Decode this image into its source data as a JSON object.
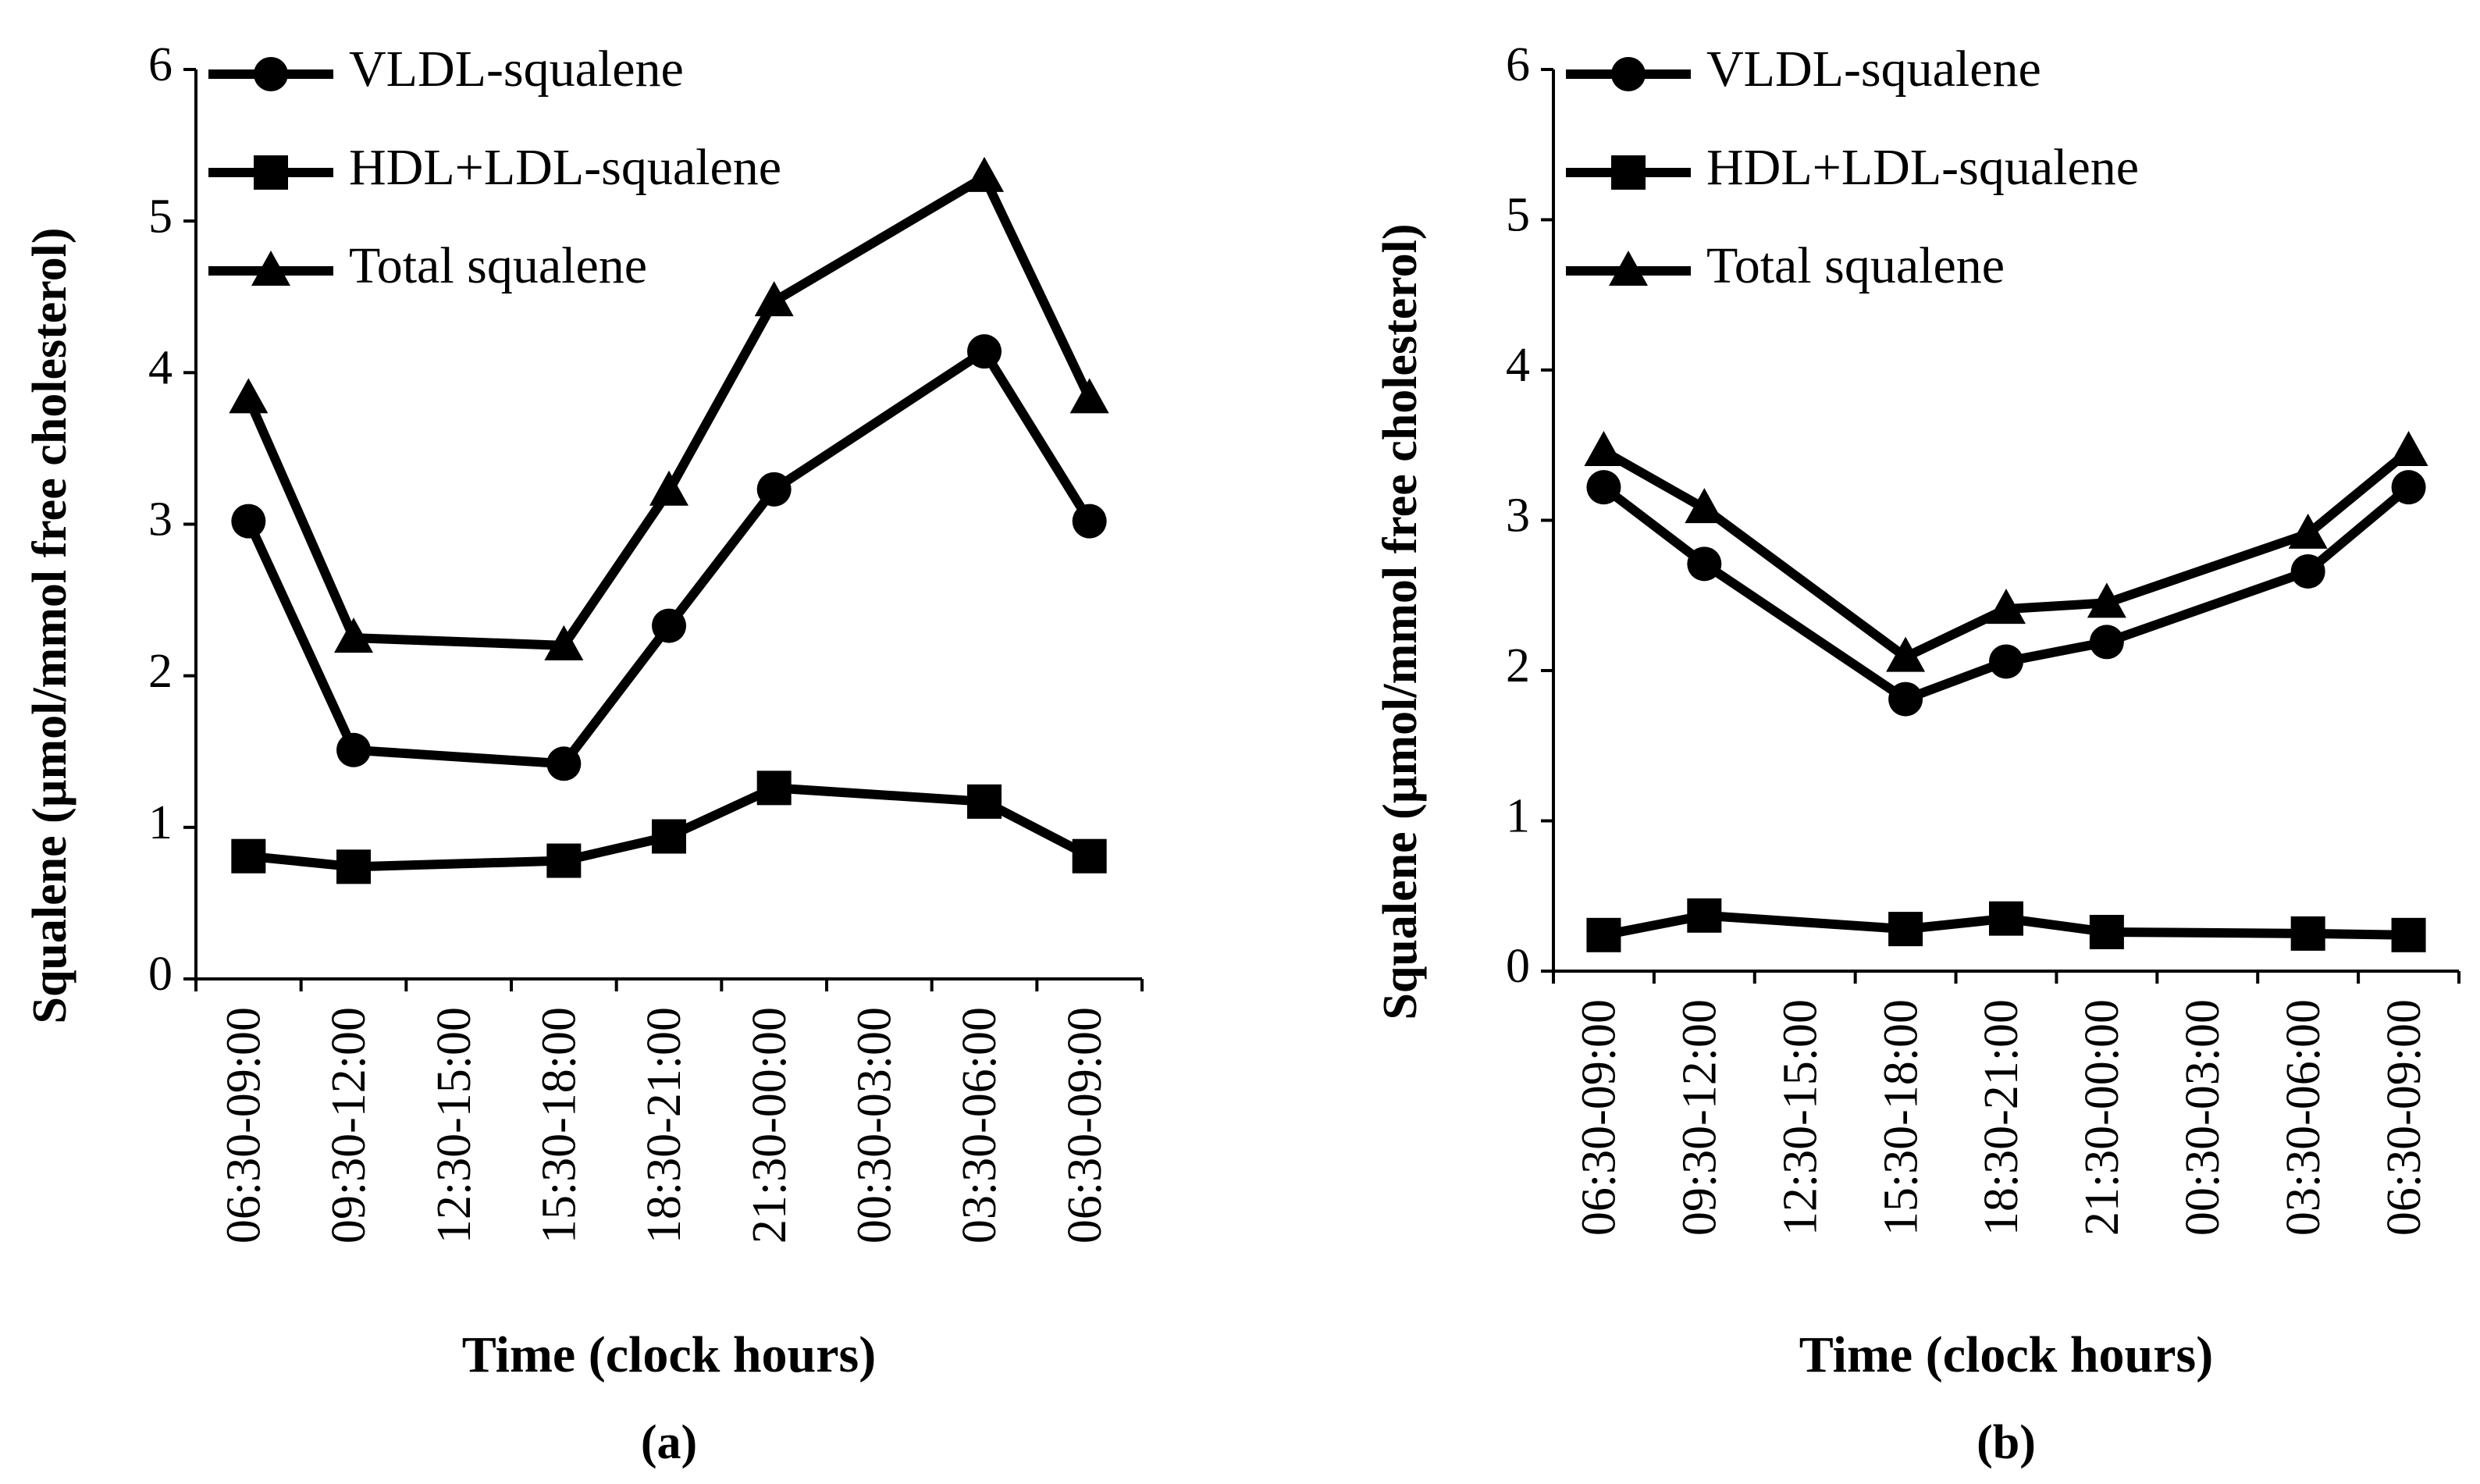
{
  "chart_data": [
    {
      "type": "line",
      "caption": "(a)",
      "x_label": "Time (clock hours)",
      "y_label": "Squalene (µmol/mmol free cholesterol)",
      "categories": [
        "06:30-09:00",
        "09:30-12:00",
        "12:30-15:00",
        "15:30-18:00",
        "18:30-21:00",
        "21:30-00:00",
        "00:30-03:00",
        "03:30-06:00",
        "06:30-09:00"
      ],
      "series": [
        {
          "name": "VLDL-squalene",
          "color": "#000000",
          "marker": "circle",
          "values": [
            3.02,
            1.51,
            null,
            1.42,
            2.33,
            3.23,
            null,
            4.14,
            3.02
          ]
        },
        {
          "name": "HDL+LDL-squalene",
          "color": "#000000",
          "marker": "square",
          "values": [
            0.81,
            0.74,
            null,
            0.78,
            0.94,
            1.26,
            null,
            1.17,
            0.81
          ]
        },
        {
          "name": "Total squalene",
          "color": "#000000",
          "marker": "triangle",
          "values": [
            3.83,
            2.25,
            null,
            2.2,
            3.22,
            4.47,
            null,
            5.29,
            3.83
          ]
        }
      ],
      "ylim": [
        0,
        6
      ],
      "yticks": [
        0,
        1,
        2,
        3,
        4,
        5,
        6
      ],
      "legend": "upper left",
      "grid": false
    },
    {
      "type": "line",
      "caption": "(b)",
      "x_label": "Time (clock hours)",
      "y_label": "Squalene (µmol/mmol free cholesterol)",
      "categories": [
        "06:30-09:00",
        "09:30-12:00",
        "12:30-15:00",
        "15:30-18:00",
        "18:30-21:00",
        "21:30-00:00",
        "00:30-03:00",
        "03:30-06:00",
        "06:30-09:00"
      ],
      "series": [
        {
          "name": "VLDL-squalene",
          "color": "#000000",
          "marker": "circle",
          "values": [
            3.22,
            2.71,
            null,
            1.81,
            2.06,
            2.19,
            null,
            2.66,
            3.22
          ]
        },
        {
          "name": "HDL+LDL-squalene",
          "color": "#000000",
          "marker": "square",
          "values": [
            0.24,
            0.37,
            null,
            0.28,
            0.35,
            0.26,
            null,
            0.25,
            0.24
          ]
        },
        {
          "name": "Total squalene",
          "color": "#000000",
          "marker": "triangle",
          "values": [
            3.46,
            3.08,
            null,
            2.09,
            2.41,
            2.45,
            null,
            2.91,
            3.46
          ]
        }
      ],
      "ylim": [
        0,
        6
      ],
      "yticks": [
        0,
        1,
        2,
        3,
        4,
        5,
        6
      ],
      "legend": "upper left",
      "grid": false
    }
  ]
}
